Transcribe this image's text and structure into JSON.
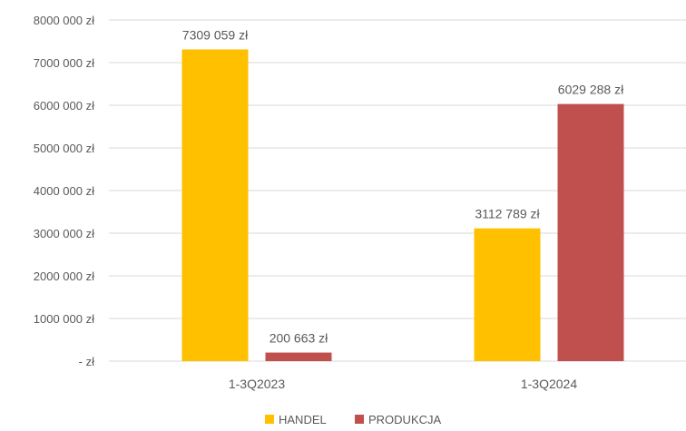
{
  "chart_data": {
    "type": "bar",
    "categories": [
      "1-3Q2023",
      "1-3Q2024"
    ],
    "series": [
      {
        "name": "HANDEL",
        "values": [
          7309059,
          3112789
        ],
        "labels": [
          "7309 059 zł",
          "3112 789 zł"
        ],
        "color": "#FFC000"
      },
      {
        "name": "PRODUKCJA",
        "values": [
          200663,
          6029288
        ],
        "labels": [
          "200 663 zł",
          "6029 288 zł"
        ],
        "color": "#C0504D"
      }
    ],
    "ylim": [
      0,
      8000000
    ],
    "yticks": [
      0,
      1000000,
      2000000,
      3000000,
      4000000,
      5000000,
      6000000,
      7000000,
      8000000
    ],
    "ytick_labels": [
      "-  zł",
      "1000 000 zł",
      "2000 000 zł",
      "3000 000 zł",
      "4000 000 zł",
      "5000 000 zł",
      "6000 000 zł",
      "7000 000 zł",
      "8000 000 zł"
    ],
    "grid": true,
    "legend": "bottom",
    "title": "",
    "xlabel": "",
    "ylabel": ""
  }
}
